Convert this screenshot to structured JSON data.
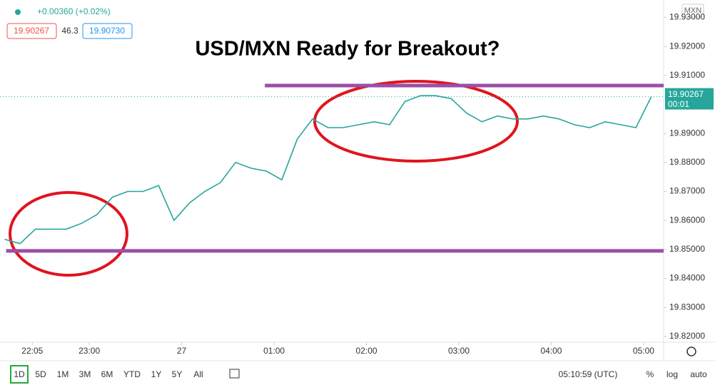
{
  "header": {
    "change": "+0.00360 (+0.02%)",
    "bid": "19.90267",
    "spread": "46.3",
    "ask": "19.90730",
    "symbol": "MXN"
  },
  "chart_data": {
    "type": "line",
    "title": "USD/MXN Ready for Breakout?",
    "color": "#26a69a",
    "x": [
      5,
      15,
      25,
      35,
      45,
      55,
      65,
      75,
      85,
      95,
      105,
      115,
      125,
      135,
      145,
      155,
      165,
      175,
      185,
      195,
      205,
      215,
      225,
      235,
      245,
      255,
      265,
      275,
      285,
      295,
      305,
      315,
      325,
      335,
      345,
      355,
      365,
      375,
      385,
      395,
      405,
      415,
      425
    ],
    "values": [
      19.8535,
      19.852,
      19.857,
      19.857,
      19.857,
      19.859,
      19.862,
      19.868,
      19.87,
      19.87,
      19.872,
      19.86,
      19.866,
      19.87,
      19.873,
      19.88,
      19.878,
      19.877,
      19.874,
      19.888,
      19.895,
      19.892,
      19.892,
      19.893,
      19.894,
      19.893,
      19.901,
      19.903,
      19.903,
      19.902,
      19.897,
      19.894,
      19.896,
      19.895,
      19.895,
      19.896,
      19.895,
      19.893,
      19.892,
      19.894,
      19.893,
      19.892,
      19.90267
    ],
    "xlim": [
      2,
      433
    ],
    "ylim": [
      19.818,
      19.936
    ],
    "xticks": [
      {
        "value": 23,
        "label": "22:05"
      },
      {
        "value": 60,
        "label": "23:00"
      },
      {
        "value": 120,
        "label": "27"
      },
      {
        "value": 180,
        "label": "01:00"
      },
      {
        "value": 240,
        "label": "02:00"
      },
      {
        "value": 300,
        "label": "03:00"
      },
      {
        "value": 360,
        "label": "04:00"
      },
      {
        "value": 420,
        "label": "05:00"
      }
    ],
    "yticks": [
      {
        "value": 19.82,
        "label": "19.82000"
      },
      {
        "value": 19.83,
        "label": "19.83000"
      },
      {
        "value": 19.84,
        "label": "19.84000"
      },
      {
        "value": 19.85,
        "label": "19.85000"
      },
      {
        "value": 19.86,
        "label": "19.86000"
      },
      {
        "value": 19.87,
        "label": "19.87000"
      },
      {
        "value": 19.88,
        "label": "19.88000"
      },
      {
        "value": 19.89,
        "label": "19.89000"
      },
      {
        "value": 19.91,
        "label": "19.91000"
      },
      {
        "value": 19.92,
        "label": "19.92000"
      },
      {
        "value": 19.93,
        "label": "19.93000"
      }
    ],
    "grid": false,
    "last_price": 19.90267,
    "countdown": "00:01",
    "levels": [
      {
        "value": 19.9065,
        "start": 174,
        "color": "#9b4ea6"
      },
      {
        "value": 19.8495,
        "start": 6,
        "color": "#9b4ea6"
      }
    ]
  },
  "toolbar": {
    "ranges": [
      "1D",
      "5D",
      "1M",
      "3M",
      "6M",
      "YTD",
      "1Y",
      "5Y",
      "All"
    ],
    "clock": "05:10:59 (UTC)",
    "percent": "%",
    "log": "log",
    "auto": "auto"
  }
}
